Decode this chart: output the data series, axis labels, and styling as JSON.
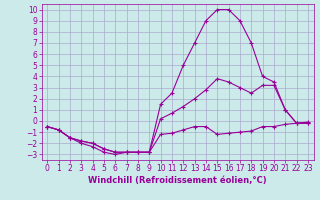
{
  "xlabel": "Windchill (Refroidissement éolien,°C)",
  "bg_color": "#cceaea",
  "grid_color": "#aaaacc",
  "line_color": "#990099",
  "xlim": [
    -0.5,
    23.5
  ],
  "ylim": [
    -3.5,
    10.5
  ],
  "xticks": [
    0,
    1,
    2,
    3,
    4,
    5,
    6,
    7,
    8,
    9,
    10,
    11,
    12,
    13,
    14,
    15,
    16,
    17,
    18,
    19,
    20,
    21,
    22,
    23
  ],
  "yticks": [
    -3,
    -2,
    -1,
    0,
    1,
    2,
    3,
    4,
    5,
    6,
    7,
    8,
    9,
    10
  ],
  "line1_x": [
    0,
    1,
    2,
    3,
    4,
    5,
    6,
    7,
    8,
    9,
    10,
    11,
    12,
    13,
    14,
    15,
    16,
    17,
    18,
    19,
    20,
    21,
    22,
    23
  ],
  "line1_y": [
    -0.5,
    -0.8,
    -1.5,
    -2.0,
    -2.3,
    -2.8,
    -3.0,
    -2.8,
    -2.8,
    -2.8,
    -1.2,
    -1.1,
    -0.8,
    -0.5,
    -0.5,
    -1.2,
    -1.1,
    -1.0,
    -0.9,
    -0.5,
    -0.5,
    -0.3,
    -0.2,
    -0.1
  ],
  "line2_x": [
    0,
    1,
    2,
    3,
    4,
    5,
    6,
    7,
    8,
    9,
    10,
    11,
    12,
    13,
    14,
    15,
    16,
    17,
    18,
    19,
    20,
    21,
    22,
    23
  ],
  "line2_y": [
    -0.5,
    -0.8,
    -1.5,
    -1.8,
    -2.0,
    -2.5,
    -2.8,
    -2.8,
    -2.8,
    -2.8,
    0.2,
    0.7,
    1.3,
    2.0,
    2.8,
    3.8,
    3.5,
    3.0,
    2.5,
    3.2,
    3.2,
    1.0,
    -0.2,
    -0.2
  ],
  "line3_x": [
    0,
    1,
    2,
    3,
    4,
    5,
    6,
    7,
    8,
    9,
    10,
    11,
    12,
    13,
    14,
    15,
    16,
    17,
    18,
    19,
    20,
    21,
    22,
    23
  ],
  "line3_y": [
    -0.5,
    -0.8,
    -1.5,
    -1.8,
    -2.0,
    -2.5,
    -2.8,
    -2.8,
    -2.8,
    -2.8,
    1.5,
    2.5,
    5.0,
    7.0,
    9.0,
    10.0,
    10.0,
    9.0,
    7.0,
    4.0,
    3.5,
    1.0,
    -0.2,
    -0.2
  ],
  "marker_size": 2.5,
  "tick_fontsize": 5.5,
  "xlabel_fontsize": 6
}
